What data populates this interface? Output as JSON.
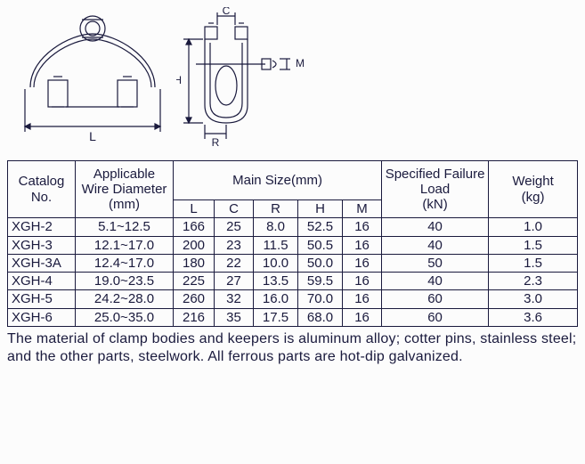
{
  "diagrams": {
    "front": {
      "label_L": "L"
    },
    "side": {
      "label_C": "C",
      "label_H": "H",
      "label_R": "R",
      "label_M": "M"
    }
  },
  "table": {
    "headers": {
      "catalog": "Catalog\nNo.",
      "diameter": "Applicable\nWire Diameter\n(mm)",
      "main_size": "Main Size(mm)",
      "L": "L",
      "C": "C",
      "R": "R",
      "H": "H",
      "M": "M",
      "failure": "Specified Failure\nLoad\n(kN)",
      "weight": "Weight\n(kg)"
    },
    "rows": [
      {
        "cat": "XGH-2",
        "diam": "5.1~12.5",
        "L": "166",
        "C": "25",
        "R": "8.0",
        "H": "52.5",
        "M": "16",
        "fail": "40",
        "wt": "1.0"
      },
      {
        "cat": "XGH-3",
        "diam": "12.1~17.0",
        "L": "200",
        "C": "23",
        "R": "11.5",
        "H": "50.5",
        "M": "16",
        "fail": "40",
        "wt": "1.5"
      },
      {
        "cat": "XGH-3A",
        "diam": "12.4~17.0",
        "L": "180",
        "C": "22",
        "R": "10.0",
        "H": "50.0",
        "M": "16",
        "fail": "50",
        "wt": "1.5"
      },
      {
        "cat": "XGH-4",
        "diam": "19.0~23.5",
        "L": "225",
        "C": "27",
        "R": "13.5",
        "H": "59.5",
        "M": "16",
        "fail": "40",
        "wt": "2.3"
      },
      {
        "cat": "XGH-5",
        "diam": "24.2~28.0",
        "L": "260",
        "C": "32",
        "R": "16.0",
        "H": "70.0",
        "M": "16",
        "fail": "60",
        "wt": "3.0"
      },
      {
        "cat": "XGH-6",
        "diam": "25.0~35.0",
        "L": "216",
        "C": "35",
        "R": "17.5",
        "H": "68.0",
        "M": "16",
        "fail": "60",
        "wt": "3.6"
      }
    ]
  },
  "note": "The material of clamp bodies and keepers is aluminum alloy; cotter pins, stainless steel; and the other parts, steelwork. All ferrous parts are hot-dip galvanized.",
  "style": {
    "stroke": "#1a1a3d",
    "text_color": "#1a1a3d",
    "bg": "#fcfcfc"
  }
}
